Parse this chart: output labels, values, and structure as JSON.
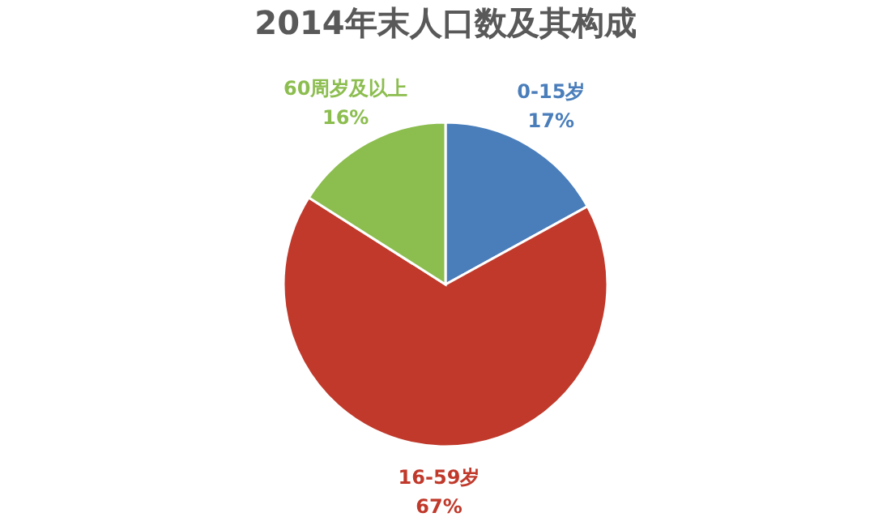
{
  "chart_data": {
    "type": "pie",
    "title": "2014年末人口数及其构成",
    "categories": [
      "0-15岁",
      "16-59岁",
      "60周岁及以上"
    ],
    "values": [
      17,
      67,
      16
    ],
    "colors": [
      "#4a7ebb",
      "#c0392b",
      "#8cbd4f"
    ],
    "value_labels": [
      "17%",
      "67%",
      "16%"
    ],
    "legend": false
  }
}
